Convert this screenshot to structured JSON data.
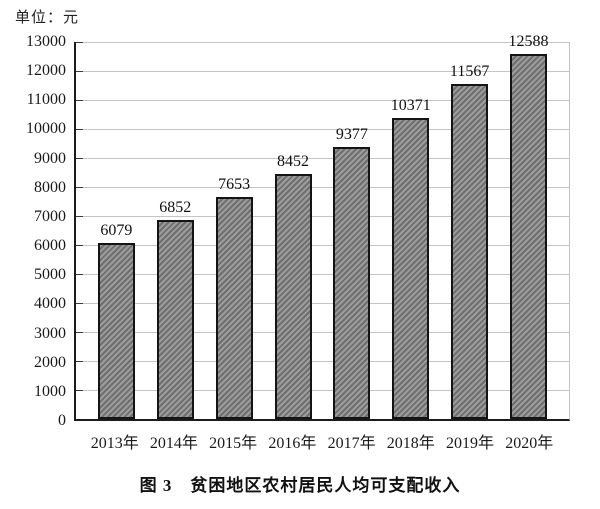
{
  "unit_label": "单位：元",
  "caption": "图 3　贫困地区农村居民人均可支配收入",
  "chart_data": {
    "type": "bar",
    "title": "图 3 贫困地区农村居民人均可支配收入",
    "unit": "单位：元",
    "categories": [
      "2013年",
      "2014年",
      "2015年",
      "2016年",
      "2017年",
      "2018年",
      "2019年",
      "2020年"
    ],
    "values": [
      6079,
      6852,
      7653,
      8452,
      9377,
      10371,
      11567,
      12588
    ],
    "xlabel": "",
    "ylabel": "",
    "ylim": [
      0,
      13000
    ],
    "ytick_step": 1000,
    "grid": true,
    "legend": "none",
    "bar_fill_color": "#8d8d8d",
    "bar_hatch": "diagonal-forward",
    "bar_border_color": "#141414",
    "gridline_color": "#c4c4c4",
    "axis_color": "#1c1c1c"
  }
}
